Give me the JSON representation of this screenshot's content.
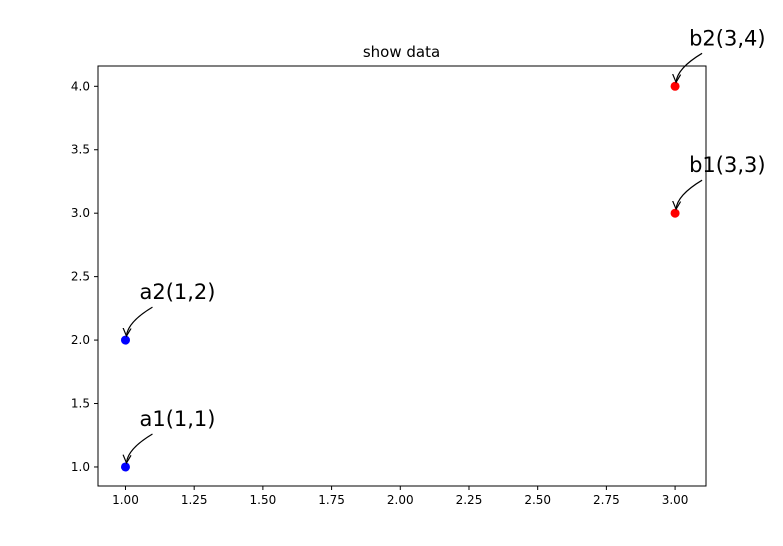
{
  "chart_data": {
    "type": "scatter",
    "title": "show data",
    "xlabel": "",
    "ylabel": "",
    "xlim": [
      0.9,
      3.1125
    ],
    "ylim": [
      0.85,
      4.16
    ],
    "x_ticks": [
      1.0,
      1.25,
      1.5,
      1.75,
      2.0,
      2.25,
      2.5,
      2.75,
      3.0
    ],
    "x_tick_labels": [
      "1.00",
      "1.25",
      "1.50",
      "1.75",
      "2.00",
      "2.25",
      "2.50",
      "2.75",
      "3.00"
    ],
    "y_ticks": [
      1.0,
      1.5,
      2.0,
      2.5,
      3.0,
      3.5,
      4.0
    ],
    "y_tick_labels": [
      "1.0",
      "1.5",
      "2.0",
      "2.5",
      "3.0",
      "3.5",
      "4.0"
    ],
    "grid": false,
    "series": [
      {
        "color": "#0000ff",
        "points": [
          {
            "x": 1,
            "y": 1,
            "label": "a1(1,1)"
          },
          {
            "x": 1,
            "y": 2,
            "label": "a2(1,2)"
          }
        ]
      },
      {
        "color": "#ff0000",
        "points": [
          {
            "x": 3,
            "y": 3,
            "label": "b1(3,3)"
          },
          {
            "x": 3,
            "y": 4,
            "label": "b2(3,4)"
          }
        ]
      }
    ]
  }
}
